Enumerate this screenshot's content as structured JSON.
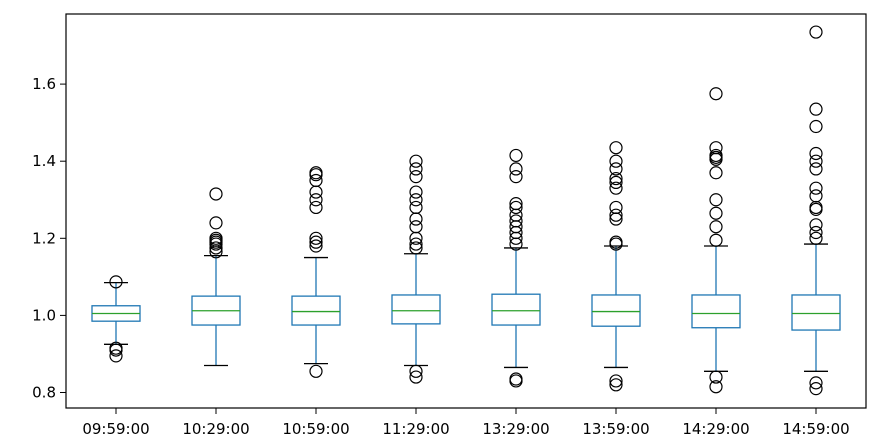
{
  "chart_data": {
    "type": "box",
    "title": "",
    "xlabel": "",
    "ylabel": "",
    "ylim": [
      0.78,
      1.78
    ],
    "yticks": [
      0.8,
      1.0,
      1.2,
      1.4,
      1.6
    ],
    "ytick_labels": [
      "0.8",
      "1.0",
      "1.2",
      "1.4",
      "1.6"
    ],
    "grid": false,
    "colors": {
      "box": "#1f77b4",
      "median": "#2ca02c",
      "whisker": "#1f77b4",
      "outlier": "#000000"
    },
    "categories": [
      "09:59:00",
      "10:29:00",
      "10:59:00",
      "11:29:00",
      "13:29:00",
      "13:59:00",
      "14:29:00",
      "14:59:00"
    ],
    "boxes": [
      {
        "label": "09:59:00",
        "whislo": 0.925,
        "q1": 0.985,
        "med": 1.005,
        "q3": 1.025,
        "whishi": 1.085,
        "fliers": [
          0.895,
          0.91,
          0.915,
          1.087
        ]
      },
      {
        "label": "10:29:00",
        "whislo": 0.87,
        "q1": 0.975,
        "med": 1.012,
        "q3": 1.05,
        "whishi": 1.155,
        "fliers": [
          1.165,
          1.175,
          1.185,
          1.19,
          1.195,
          1.2,
          1.24,
          1.315
        ]
      },
      {
        "label": "10:59:00",
        "whislo": 0.875,
        "q1": 0.975,
        "med": 1.01,
        "q3": 1.05,
        "whishi": 1.15,
        "fliers": [
          0.855,
          1.18,
          1.19,
          1.2,
          1.28,
          1.3,
          1.32,
          1.35,
          1.365,
          1.37
        ]
      },
      {
        "label": "11:29:00",
        "whislo": 0.87,
        "q1": 0.978,
        "med": 1.012,
        "q3": 1.053,
        "whishi": 1.16,
        "fliers": [
          0.84,
          0.855,
          1.175,
          1.185,
          1.2,
          1.23,
          1.25,
          1.28,
          1.3,
          1.32,
          1.36,
          1.38,
          1.4
        ]
      },
      {
        "label": "13:29:00",
        "whislo": 0.865,
        "q1": 0.975,
        "med": 1.012,
        "q3": 1.055,
        "whishi": 1.175,
        "fliers": [
          0.83,
          0.835,
          1.185,
          1.2,
          1.215,
          1.23,
          1.245,
          1.26,
          1.28,
          1.29,
          1.36,
          1.38,
          1.415
        ]
      },
      {
        "label": "13:59:00",
        "whislo": 0.865,
        "q1": 0.972,
        "med": 1.01,
        "q3": 1.053,
        "whishi": 1.18,
        "fliers": [
          0.82,
          0.83,
          1.185,
          1.19,
          1.25,
          1.26,
          1.28,
          1.33,
          1.345,
          1.355,
          1.38,
          1.4,
          1.435
        ]
      },
      {
        "label": "14:29:00",
        "whislo": 0.855,
        "q1": 0.968,
        "med": 1.005,
        "q3": 1.053,
        "whishi": 1.18,
        "fliers": [
          0.815,
          0.84,
          1.195,
          1.23,
          1.265,
          1.3,
          1.37,
          1.405,
          1.41,
          1.415,
          1.435,
          1.575
        ]
      },
      {
        "label": "14:59:00",
        "whislo": 0.855,
        "q1": 0.962,
        "med": 1.005,
        "q3": 1.053,
        "whishi": 1.185,
        "fliers": [
          0.81,
          0.825,
          1.2,
          1.215,
          1.235,
          1.275,
          1.28,
          1.31,
          1.33,
          1.38,
          1.4,
          1.42,
          1.49,
          1.535,
          1.735
        ]
      }
    ]
  }
}
